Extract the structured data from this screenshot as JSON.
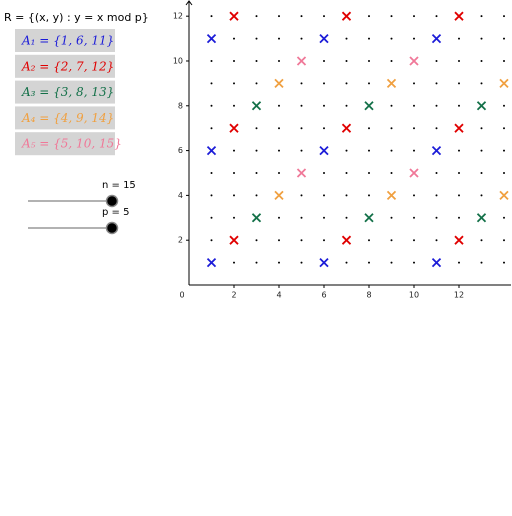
{
  "title": "R = {(x, y) : y = x mod p}",
  "sets": [
    {
      "label": "A₁ = {1, 6, 11}",
      "color": "#1c1cd8",
      "elements": [
        1,
        6,
        11
      ]
    },
    {
      "label": "A₂ = {2, 7, 12}",
      "color": "#e00000",
      "elements": [
        2,
        7,
        12
      ]
    },
    {
      "label": "A₃ = {3, 8, 13}",
      "color": "#137048",
      "elements": [
        3,
        8,
        13
      ]
    },
    {
      "label": "A₄ = {4, 9, 14}",
      "color": "#f0a040",
      "elements": [
        4,
        9,
        14
      ]
    },
    {
      "label": "A₅ = {5, 10, 15}",
      "color": "#f07898",
      "elements": [
        5,
        10,
        15
      ]
    }
  ],
  "sliders": [
    {
      "label": "n = 15"
    },
    {
      "label": "p = 5"
    }
  ],
  "chart_data": {
    "type": "scatter",
    "xlim": [
      0,
      14.3
    ],
    "ylim": [
      0,
      12.7
    ],
    "xticks": [
      0,
      2,
      4,
      6,
      8,
      10,
      12
    ],
    "yticks": [
      2,
      4,
      6,
      8,
      10,
      12
    ]
  }
}
